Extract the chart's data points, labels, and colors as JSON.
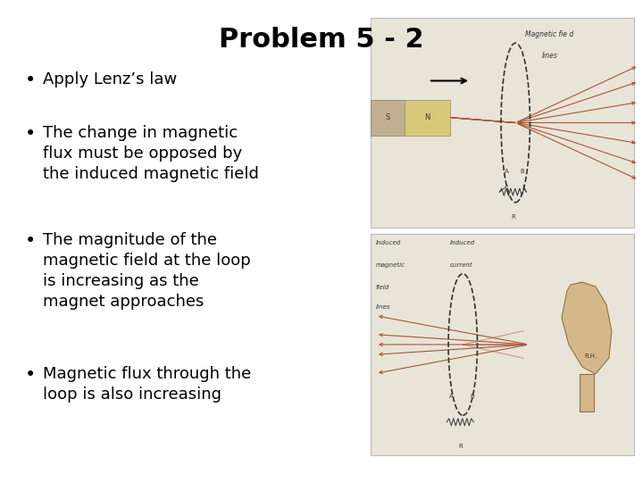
{
  "title": "Problem 5 - 2",
  "title_fontsize": 22,
  "title_fontweight": "bold",
  "background_color": "#ffffff",
  "bullets": [
    "Apply Lenz’s law",
    "The change in magnetic\nflux must be opposed by\nthe induced magnetic field",
    "The magnitude of the\nmagnetic field at the loop\nis increasing as the\nmagnet approaches",
    "Magnetic flux through the\nloop is also increasing"
  ],
  "bullet_fontsize": 13,
  "bullet_color": "#000000",
  "text_color": "#000000",
  "img_bg_color": "#e8e4d8",
  "img_border_color": "#bbbbbb",
  "magnet_color": "#d8c87a",
  "magnet_border_color": "#999966",
  "field_line_color": "#aa5533",
  "loop_color": "#333333",
  "hand_color": "#d4b88a"
}
